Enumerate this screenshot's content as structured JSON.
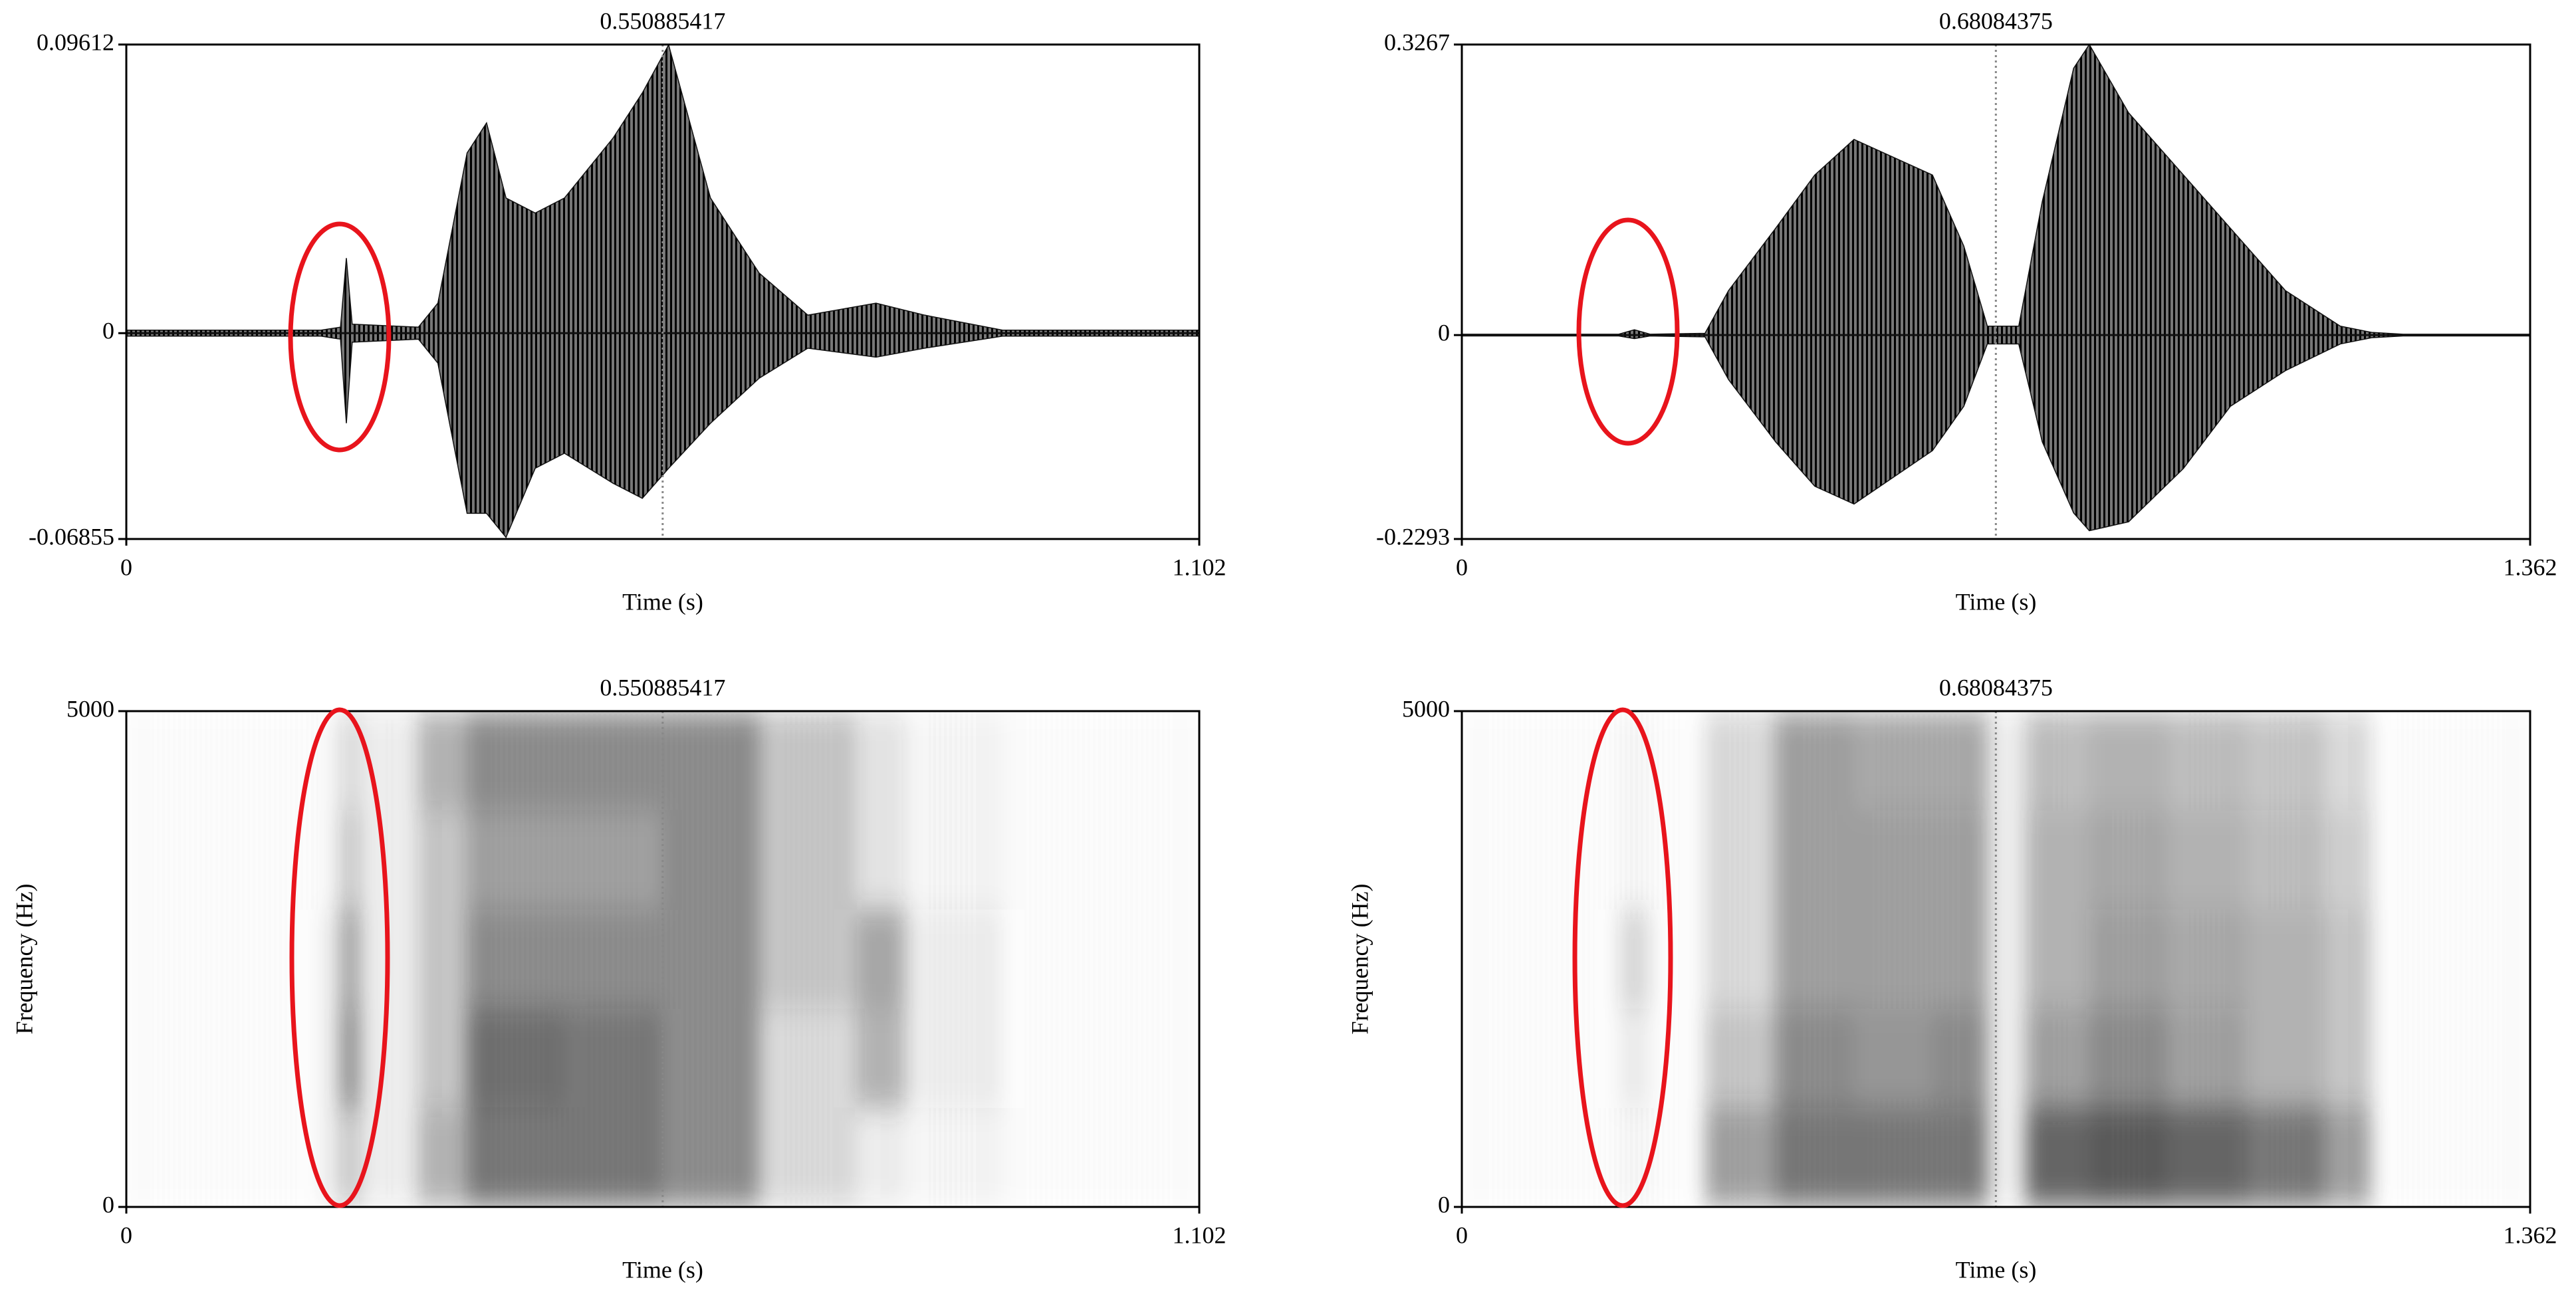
{
  "chart_data": [
    {
      "type": "waveform",
      "xlabel": "Time (s)",
      "cursor": 0.550885417,
      "xlim": [
        0,
        1.102
      ],
      "xticks": [
        0,
        1.102
      ],
      "ylim": [
        -0.06855,
        0.09612
      ],
      "yticks": [
        -0.06855,
        0,
        0.09612
      ],
      "x": [
        0,
        0.2,
        0.22,
        0.226,
        0.232,
        0.3,
        0.32,
        0.35,
        0.37,
        0.39,
        0.42,
        0.45,
        0.5,
        0.53,
        0.557,
        0.6,
        0.65,
        0.7,
        0.77,
        0.82,
        0.9,
        1.102
      ],
      "upper": [
        0.001,
        0.001,
        0.002,
        0.025,
        0.003,
        0.002,
        0.01,
        0.06,
        0.07,
        0.045,
        0.04,
        0.045,
        0.065,
        0.08,
        0.096,
        0.045,
        0.02,
        0.006,
        0.01,
        0.006,
        0.001,
        0.001
      ],
      "lower": [
        -0.001,
        -0.001,
        -0.002,
        -0.03,
        -0.003,
        -0.002,
        -0.01,
        -0.06,
        -0.06,
        -0.068,
        -0.045,
        -0.04,
        -0.05,
        -0.055,
        -0.045,
        -0.03,
        -0.015,
        -0.005,
        -0.008,
        -0.005,
        -0.001,
        -0.001
      ],
      "color": "#111111"
    },
    {
      "type": "waveform",
      "xlabel": "Time (s)",
      "cursor": 0.68084375,
      "xlim": [
        0,
        1.362
      ],
      "xticks": [
        0,
        1.362
      ],
      "ylim": [
        -0.2293,
        0.3267
      ],
      "yticks": [
        -0.2293,
        0,
        0.3267
      ],
      "x": [
        0,
        0.2,
        0.22,
        0.24,
        0.31,
        0.34,
        0.4,
        0.45,
        0.5,
        0.55,
        0.6,
        0.64,
        0.67,
        0.71,
        0.74,
        0.78,
        0.8,
        0.85,
        0.92,
        0.98,
        1.05,
        1.12,
        1.16,
        1.2,
        1.362
      ],
      "upper": [
        0.001,
        0.001,
        0.006,
        0.001,
        0.002,
        0.05,
        0.12,
        0.18,
        0.22,
        0.2,
        0.18,
        0.1,
        0.01,
        0.01,
        0.15,
        0.3,
        0.3267,
        0.25,
        0.18,
        0.12,
        0.05,
        0.01,
        0.003,
        0.001,
        0.001
      ],
      "lower": [
        -0.001,
        -0.001,
        -0.004,
        -0.001,
        -0.002,
        -0.05,
        -0.12,
        -0.17,
        -0.19,
        -0.16,
        -0.13,
        -0.08,
        -0.01,
        -0.01,
        -0.12,
        -0.2,
        -0.22,
        -0.21,
        -0.15,
        -0.08,
        -0.04,
        -0.01,
        -0.003,
        -0.001,
        -0.001
      ],
      "color": "#111111"
    },
    {
      "type": "spectrogram",
      "xlabel": "Time (s)",
      "ylabel": "Frequency (Hz)",
      "cursor": 0.550885417,
      "xlim": [
        0,
        1.102
      ],
      "xticks": [
        0,
        1.102
      ],
      "ylim": [
        0,
        5000
      ],
      "yticks": [
        0,
        5000
      ],
      "x": [
        0,
        0.2,
        0.22,
        0.24,
        0.3,
        0.35,
        0.45,
        0.55,
        0.65,
        0.75,
        0.8,
        0.9,
        1.102
      ],
      "bands": [
        0,
        1000,
        2000,
        3000,
        4000,
        5000
      ],
      "intensity": [
        [
          0.02,
          0.1,
          0.3,
          0.1,
          0.4,
          0.7,
          0.7,
          0.6,
          0.2,
          0.1,
          0.05,
          0.02
        ],
        [
          0.02,
          0.1,
          0.6,
          0.1,
          0.3,
          0.75,
          0.7,
          0.6,
          0.2,
          0.4,
          0.1,
          0.02
        ],
        [
          0.02,
          0.1,
          0.5,
          0.1,
          0.3,
          0.6,
          0.6,
          0.6,
          0.3,
          0.45,
          0.1,
          0.02
        ],
        [
          0.02,
          0.05,
          0.3,
          0.1,
          0.3,
          0.5,
          0.5,
          0.6,
          0.3,
          0.15,
          0.05,
          0.02
        ],
        [
          0.02,
          0.05,
          0.2,
          0.1,
          0.4,
          0.6,
          0.6,
          0.6,
          0.3,
          0.15,
          0.05,
          0.02
        ]
      ],
      "color": "#222222"
    },
    {
      "type": "spectrogram",
      "xlabel": "Time (s)",
      "ylabel": "Frequency (Hz)",
      "cursor": 0.68084375,
      "xlim": [
        0,
        1.362
      ],
      "xticks": [
        0,
        1.362
      ],
      "ylim": [
        0,
        5000
      ],
      "yticks": [
        0,
        5000
      ],
      "x": [
        0,
        0.2,
        0.24,
        0.31,
        0.4,
        0.5,
        0.6,
        0.67,
        0.72,
        0.8,
        0.9,
        1.0,
        1.1,
        1.16,
        1.362
      ],
      "bands": [
        0,
        1000,
        2000,
        3000,
        4000,
        5000
      ],
      "intensity": [
        [
          0.02,
          0.05,
          0.02,
          0.5,
          0.7,
          0.7,
          0.7,
          0.1,
          0.8,
          0.85,
          0.8,
          0.7,
          0.5,
          0.02
        ],
        [
          0.02,
          0.1,
          0.02,
          0.3,
          0.6,
          0.55,
          0.6,
          0.1,
          0.5,
          0.6,
          0.5,
          0.4,
          0.3,
          0.02
        ],
        [
          0.02,
          0.2,
          0.02,
          0.2,
          0.5,
          0.5,
          0.5,
          0.1,
          0.4,
          0.5,
          0.45,
          0.4,
          0.3,
          0.02
        ],
        [
          0.02,
          0.05,
          0.02,
          0.2,
          0.5,
          0.5,
          0.5,
          0.1,
          0.4,
          0.45,
          0.4,
          0.35,
          0.25,
          0.02
        ],
        [
          0.02,
          0.05,
          0.02,
          0.2,
          0.5,
          0.45,
          0.45,
          0.1,
          0.35,
          0.4,
          0.35,
          0.3,
          0.2,
          0.02
        ]
      ],
      "color": "#222222"
    }
  ]
}
